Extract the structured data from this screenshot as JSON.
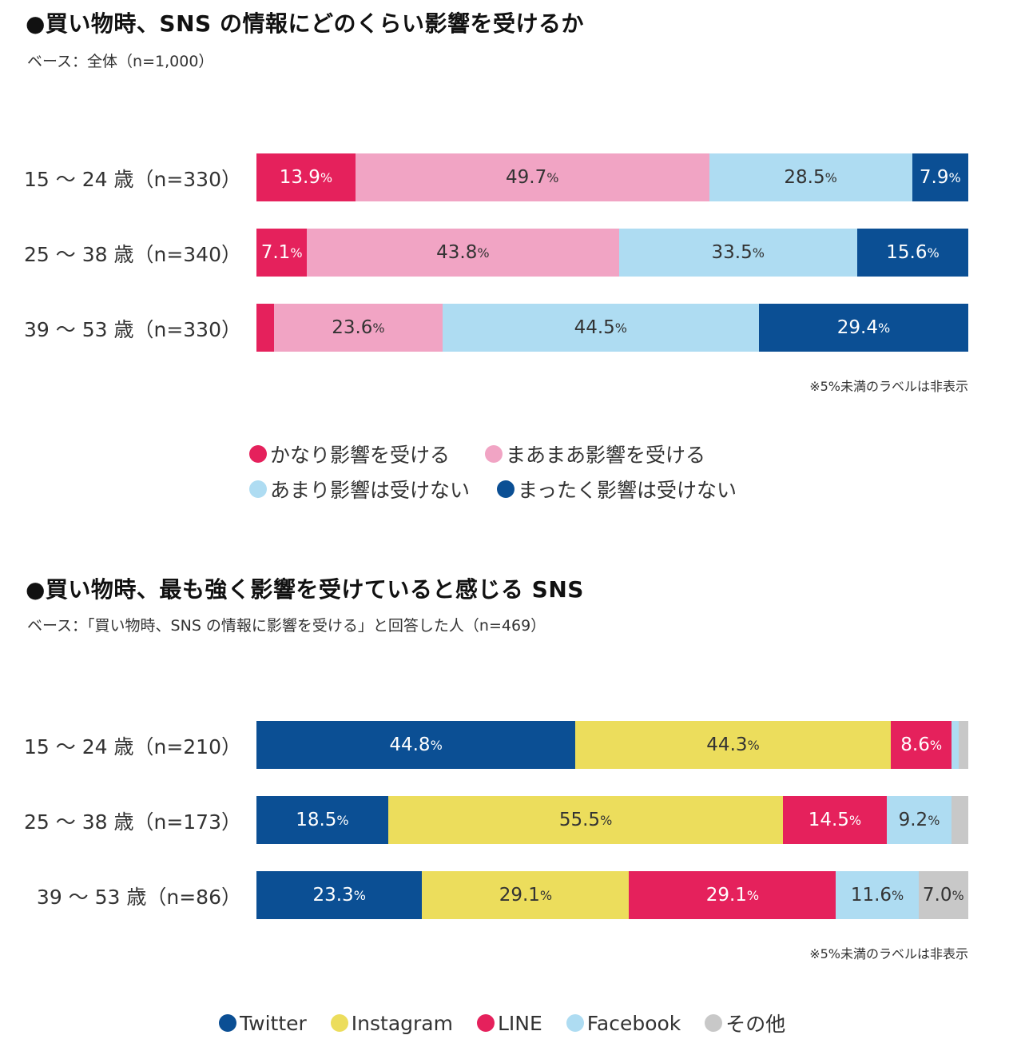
{
  "chart_data": [
    {
      "type": "bar",
      "stacked": true,
      "orientation": "horizontal",
      "title": "●買い物時、SNS の情報にどのくらい影響を受けるか",
      "subtitle": "ベース：全体（n=1,000）",
      "categories": [
        "15 〜 24 歳（n=330）",
        "25 〜 38 歳（n=340）",
        "39 〜 53 歳（n=330）"
      ],
      "series": [
        {
          "name": "かなり影響を受ける",
          "color": "#e5215c",
          "text_color": "#ffffff",
          "values": [
            13.9,
            7.1,
            2.5
          ]
        },
        {
          "name": "まあまあ影響を受ける",
          "color": "#f1a4c4",
          "text_color": "#333333",
          "values": [
            49.7,
            43.8,
            23.6
          ]
        },
        {
          "name": "あまり影響は受けない",
          "color": "#aedcf2",
          "text_color": "#333333",
          "values": [
            28.5,
            33.5,
            44.5
          ]
        },
        {
          "name": "まったく影響は受けない",
          "color": "#0b4f94",
          "text_color": "#ffffff",
          "values": [
            7.9,
            15.6,
            29.4
          ]
        }
      ],
      "label_threshold": 5,
      "unit": "%",
      "note": "※5%未満のラベルは非表示",
      "legend": [
        [
          "かなり影響を受ける",
          "まあまあ影響を受ける"
        ],
        [
          "あまり影響は受けない",
          "まったく影響は受けない"
        ]
      ]
    },
    {
      "type": "bar",
      "stacked": true,
      "orientation": "horizontal",
      "title": "●買い物時、最も強く影響を受けていると感じる SNS",
      "subtitle": "ベース：「買い物時、SNS の情報に影響を受ける」と回答した人（n=469）",
      "categories": [
        "15 〜 24 歳（n=210）",
        "25 〜 38 歳（n=173）",
        "39 〜 53 歳（n=86）"
      ],
      "series": [
        {
          "name": "Twitter",
          "color": "#0b4f94",
          "text_color": "#ffffff",
          "values": [
            44.8,
            18.5,
            23.3
          ]
        },
        {
          "name": "Instagram",
          "color": "#ecdd5c",
          "text_color": "#333333",
          "values": [
            44.3,
            55.5,
            29.1
          ]
        },
        {
          "name": "LINE",
          "color": "#e5215c",
          "text_color": "#ffffff",
          "values": [
            8.6,
            14.5,
            29.1
          ]
        },
        {
          "name": "Facebook",
          "color": "#aedcf2",
          "text_color": "#333333",
          "values": [
            1.0,
            9.2,
            11.6
          ]
        },
        {
          "name": "その他",
          "color": "#c8c8c8",
          "text_color": "#333333",
          "values": [
            1.3,
            2.3,
            7.0
          ]
        }
      ],
      "label_threshold": 5,
      "unit": "%",
      "note": "※5%未満のラベルは非表示",
      "legend": [
        [
          "Twitter",
          "Instagram",
          "LINE",
          "Facebook",
          "その他"
        ]
      ]
    }
  ]
}
